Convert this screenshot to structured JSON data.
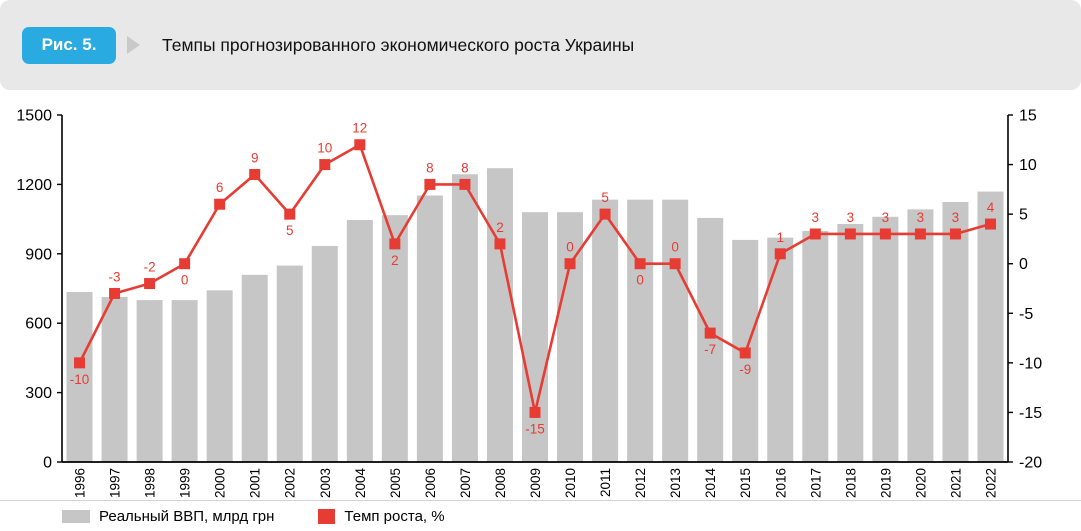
{
  "figure": {
    "badge_label": "Рис. 5.",
    "title": "Темпы прогнозированного экономического роста Украины"
  },
  "colors": {
    "header_bg": "#e8e8e8",
    "badge_blue": "#29abe2",
    "bar_gray": "#c6c6c6",
    "line_red": "#e73c33",
    "axis_black": "#000000"
  },
  "chart_data": {
    "type": "bar+line",
    "title": "Темпы прогнозированного экономического роста Украины",
    "categories": [
      "1996",
      "1997",
      "1998",
      "1999",
      "2000",
      "2001",
      "2002",
      "2003",
      "2004",
      "2005",
      "2006",
      "2007",
      "2008",
      "2009",
      "2010",
      "2011",
      "2012",
      "2013",
      "2014",
      "2015",
      "2016",
      "2017",
      "2018",
      "2019",
      "2020",
      "2021",
      "2022"
    ],
    "series": [
      {
        "name": "Реальный ВВП, млрд грн",
        "type": "bar",
        "axis": "left",
        "values": [
          735,
          713,
          700,
          700,
          742,
          809,
          849,
          934,
          1046,
          1067,
          1152,
          1244,
          1270,
          1080,
          1080,
          1134,
          1134,
          1134,
          1055,
          960,
          970,
          999,
          1029,
          1060,
          1092,
          1124,
          1169
        ]
      },
      {
        "name": "Темп роста, %",
        "type": "line",
        "axis": "right",
        "values": [
          -10,
          -3,
          -2,
          0,
          6,
          9,
          5,
          10,
          12,
          2,
          8,
          8,
          2,
          -15,
          0,
          5,
          0,
          0,
          -7,
          -9,
          1,
          3,
          3,
          3,
          3,
          3,
          4
        ],
        "label_positions": [
          "below",
          "above",
          "above",
          "below",
          "above",
          "above",
          "below",
          "above",
          "above",
          "below",
          "above",
          "above",
          "above",
          "below",
          "above",
          "above",
          "below",
          "above",
          "below",
          "below",
          "above",
          "above",
          "above",
          "above",
          "above",
          "above",
          "above"
        ]
      }
    ],
    "left_axis": {
      "min": 0,
      "max": 1500,
      "ticks": [
        0,
        300,
        600,
        900,
        1200,
        1500
      ]
    },
    "right_axis": {
      "min": -20,
      "max": 15,
      "ticks": [
        15,
        10,
        5,
        0,
        -5,
        -10,
        -15,
        -20
      ]
    },
    "grid": false,
    "legend_position": "bottom-left",
    "x_tick_rotation": -90
  }
}
